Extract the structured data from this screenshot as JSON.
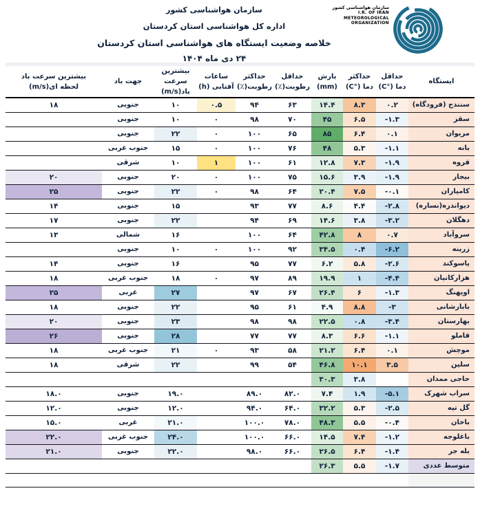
{
  "header": {
    "org_line": "سازمان هواشناسی کشور",
    "office_line": "اداره کل هواشناسی استان کردستان",
    "title": "خلاصه وضعیت ایستگاه های هواشناسی استان کردستان",
    "date": "۲۴ دی ماه ۱۴۰۴"
  },
  "logo": {
    "fa": "سازمان هواشناسی کشور",
    "en_lines": [
      "I.R. OF IRAN",
      "METEOROLOGICAL",
      "ORGANIZATION"
    ],
    "color": "#1D6B8C"
  },
  "colors": {
    "station_bg": "#FCE4D6",
    "average_row_bg": "#DED9E8",
    "empty_row_bg": "#F3F5F3",
    "strip_bg": "#EFEFF5",
    "logo_teal": "#1D6B8C"
  },
  "table": {
    "columns": [
      {
        "id": "station",
        "label": "ایستگاه"
      },
      {
        "id": "tmin",
        "label": "حداقل\nدما (°C)"
      },
      {
        "id": "tmax",
        "label": "حداکثر\nدما (°C)"
      },
      {
        "id": "precip",
        "label": "بارش\n(mm)"
      },
      {
        "id": "hum_min",
        "label": "حداقل\nرطوبت(٪)"
      },
      {
        "id": "hum_max",
        "label": "حداکثر\nرطوبت(٪)"
      },
      {
        "id": "sunshine",
        "label": "ساعات\nآفتابی (h)"
      },
      {
        "id": "wind_max",
        "label": "بیشترین سرعت\nباد(m/s)"
      },
      {
        "id": "wind_dir",
        "label": "جهت باد"
      },
      {
        "id": "gust",
        "label": "بیشترین سرعت باد\nلحظه ای(m/s)"
      }
    ],
    "rows": [
      {
        "name": "سنندج (فرودگاه)",
        "cells": [
          {
            "v": "۰.۲",
            "bg": "#FCEFE5"
          },
          {
            "v": "۸.۳",
            "bg": "#F7C59C"
          },
          {
            "v": "۱۴.۴",
            "bg": "#DEEEDF"
          },
          {
            "v": "۶۳"
          },
          {
            "v": "۹۴"
          },
          {
            "v": "۰.۵",
            "bg": "#FCF2CF"
          },
          {
            "v": "۱۰"
          },
          {
            "v": "جنوبی"
          },
          {
            "v": "۱۸"
          }
        ]
      },
      {
        "name": "سقز",
        "cells": [
          {
            "v": "-۱.۳",
            "bg": "#EDF4F9"
          },
          {
            "v": "۶.۵",
            "bg": "#FBE3CE"
          },
          {
            "v": "۴۵",
            "bg": "#98CA9E"
          },
          {
            "v": "۷۰"
          },
          {
            "v": "۹۸"
          },
          {
            "v": "۰"
          },
          {
            "v": "۱۰"
          },
          {
            "v": "جنوبی"
          },
          {
            "v": ""
          }
        ]
      },
      {
        "name": "مریوان",
        "cells": [
          {
            "v": "۰.۱",
            "bg": "#FDF2EA"
          },
          {
            "v": "۶.۴",
            "bg": "#FBE4D0"
          },
          {
            "v": "۸۵",
            "bg": "#5FAD68"
          },
          {
            "v": "۶۵"
          },
          {
            "v": "۱۰۰"
          },
          {
            "v": "۰"
          },
          {
            "v": "۲۲",
            "bg": "#E7F1F6"
          },
          {
            "v": "جنوبی"
          },
          {
            "v": ""
          }
        ]
      },
      {
        "name": "بانه",
        "cells": [
          {
            "v": "-۱.۱",
            "bg": "#EFF5FA"
          },
          {
            "v": "۵.۳",
            "bg": "#FDF4ED"
          },
          {
            "v": "۴۸",
            "bg": "#91C797"
          },
          {
            "v": "۷۶"
          },
          {
            "v": "۱۰۰"
          },
          {
            "v": "۰"
          },
          {
            "v": "۱۵"
          },
          {
            "v": "جنوب غربی"
          },
          {
            "v": ""
          }
        ]
      },
      {
        "name": "قروه",
        "cells": [
          {
            "v": "-۱.۹",
            "bg": "#E5F0F7"
          },
          {
            "v": "۷.۳",
            "bg": "#F9D4B4"
          },
          {
            "v": "۱۲.۸",
            "bg": "#E2F0E3"
          },
          {
            "v": "۶۱"
          },
          {
            "v": "۱۰۰"
          },
          {
            "v": "۱",
            "bg": "#FFE382"
          },
          {
            "v": "۱۰"
          },
          {
            "v": "شرقی"
          },
          {
            "v": ""
          }
        ]
      },
      {
        "name": "بیجار",
        "cells": [
          {
            "v": "-۱.۹",
            "bg": "#E5F0F7"
          },
          {
            "v": "۳.۹",
            "bg": "#EBF3F8"
          },
          {
            "v": "۱۵.۶",
            "bg": "#DBEDDD"
          },
          {
            "v": "۷۵"
          },
          {
            "v": "۱۰۰"
          },
          {
            "v": "۰"
          },
          {
            "v": "۲۰"
          },
          {
            "v": "جنوبی"
          },
          {
            "v": "۲۰",
            "bg": "#EAE7F2"
          }
        ]
      },
      {
        "name": "کامیاران",
        "cells": [
          {
            "v": "-۰.۱",
            "bg": "#FDF9F5"
          },
          {
            "v": "۷.۵",
            "bg": "#F9D1AF"
          },
          {
            "v": "۲۰.۴",
            "bg": "#D0E7D3"
          },
          {
            "v": "۶۴"
          },
          {
            "v": "۹۸"
          },
          {
            "v": "۰"
          },
          {
            "v": "۲۲",
            "bg": "#E7F1F6"
          },
          {
            "v": "جنوبی"
          },
          {
            "v": "۲۵",
            "bg": "#C3B8DB"
          }
        ]
      },
      {
        "name": "دیواندره(نساره)",
        "cells": [
          {
            "v": "-۲.۸",
            "bg": "#D5E7F1"
          },
          {
            "v": "۴.۴",
            "bg": "#FEFCFA"
          },
          {
            "v": "۸.۶",
            "bg": "#EBF5EC"
          },
          {
            "v": "۷۷"
          },
          {
            "v": "۹۳"
          },
          {
            "v": ""
          },
          {
            "v": "۱۵"
          },
          {
            "v": "جنوبی"
          },
          {
            "v": "۱۴"
          }
        ]
      },
      {
        "name": "دهگلان",
        "cells": [
          {
            "v": "-۳.۲",
            "bg": "#CEE3EF"
          },
          {
            "v": "۳.۸",
            "bg": "#EAF2F8"
          },
          {
            "v": "۱۴.۶",
            "bg": "#DEEEDF"
          },
          {
            "v": "۶۹"
          },
          {
            "v": "۹۴"
          },
          {
            "v": ""
          },
          {
            "v": "۲۲",
            "bg": "#E7F1F6"
          },
          {
            "v": "جنوبی"
          },
          {
            "v": "۱۷"
          }
        ]
      },
      {
        "name": "سروآباد",
        "cells": [
          {
            "v": "۰.۷",
            "bg": "#FBE9DA"
          },
          {
            "v": "۸",
            "bg": "#F8C9A3"
          },
          {
            "v": "۴۲.۸",
            "bg": "#9DCDA3"
          },
          {
            "v": "۶۴"
          },
          {
            "v": "۱۰۰"
          },
          {
            "v": ""
          },
          {
            "v": "۱۶"
          },
          {
            "v": "شمالی"
          },
          {
            "v": "۱۳"
          }
        ]
      },
      {
        "name": "زرینه",
        "cells": [
          {
            "v": "-۶.۲",
            "bg": "#90BFDA"
          },
          {
            "v": "۰.۴",
            "bg": "#C6DEED"
          },
          {
            "v": "۳۴.۵",
            "bg": "#B0D7B5"
          },
          {
            "v": "۹۲"
          },
          {
            "v": "۱۰۰"
          },
          {
            "v": "۰"
          },
          {
            "v": "۱۰"
          },
          {
            "v": "جنوبی"
          },
          {
            "v": ""
          }
        ]
      },
      {
        "name": "یاسوکند",
        "cells": [
          {
            "v": "-۲.۶",
            "bg": "#D8E9F2"
          },
          {
            "v": "۵.۸",
            "bg": "#FCEBDC"
          },
          {
            "v": "۶.۲",
            "bg": "#F1F8F1"
          },
          {
            "v": "۷۷"
          },
          {
            "v": "۹۵"
          },
          {
            "v": ""
          },
          {
            "v": "۱۶"
          },
          {
            "v": "جنوبی"
          },
          {
            "v": "۱۴"
          }
        ]
      },
      {
        "name": "هزارکانیان",
        "cells": [
          {
            "v": "-۴.۴",
            "bg": "#B7D6E8"
          },
          {
            "v": "۱",
            "bg": "#CCE2EF"
          },
          {
            "v": "۱۹.۹",
            "bg": "#D1E8D4"
          },
          {
            "v": "۸۹"
          },
          {
            "v": "۹۷"
          },
          {
            "v": "۰"
          },
          {
            "v": "۱۸"
          },
          {
            "v": "جنوب غربی"
          },
          {
            "v": "۱۸"
          }
        ]
      },
      {
        "name": "اویهنگ",
        "cells": [
          {
            "v": "-۱.۳",
            "bg": "#EDF4F9"
          },
          {
            "v": "۶",
            "bg": "#FBE7D5"
          },
          {
            "v": "۲۶.۴",
            "bg": "#C3E0C6"
          },
          {
            "v": "۶۷"
          },
          {
            "v": "۹۷"
          },
          {
            "v": ""
          },
          {
            "v": "۲۷",
            "bg": "#9ECBDE"
          },
          {
            "v": "غربی"
          },
          {
            "v": "۲۵",
            "bg": "#C3B8DB"
          }
        ]
      },
      {
        "name": "بابارشانی",
        "cells": [
          {
            "v": "-۳",
            "bg": "#D1E5F0"
          },
          {
            "v": "۸.۸",
            "bg": "#F6BE92"
          },
          {
            "v": "۴.۹",
            "bg": "#F4FAF5"
          },
          {
            "v": "۶۱"
          },
          {
            "v": "۹۵"
          },
          {
            "v": ""
          },
          {
            "v": "۲۲",
            "bg": "#E7F1F6"
          },
          {
            "v": "جنوبی"
          },
          {
            "v": "۱۸"
          }
        ]
      },
      {
        "name": "بهارستان",
        "cells": [
          {
            "v": "-۳.۴",
            "bg": "#CBE1EE"
          },
          {
            "v": "۰.۸",
            "bg": "#C9E0EE"
          },
          {
            "v": "۲۲.۵",
            "bg": "#C8E4CB"
          },
          {
            "v": "۹۸"
          },
          {
            "v": "۹۸"
          },
          {
            "v": ""
          },
          {
            "v": "۲۳",
            "bg": "#DEEBF2"
          },
          {
            "v": "جنوبی"
          },
          {
            "v": "۲۰",
            "bg": "#EAE7F2"
          }
        ]
      },
      {
        "name": "قاملو",
        "cells": [
          {
            "v": "-۱.۱",
            "bg": "#EFF5FA"
          },
          {
            "v": "۶.۶",
            "bg": "#FBE2CC"
          },
          {
            "v": "۸.۳",
            "bg": "#EBF5EC"
          },
          {
            "v": "۷۷"
          },
          {
            "v": "۷۷"
          },
          {
            "v": ""
          },
          {
            "v": "۲۸",
            "bg": "#93C5DA"
          },
          {
            "v": "جنوبی"
          },
          {
            "v": "۲۶",
            "bg": "#BCAFD6"
          }
        ]
      },
      {
        "name": "موچش",
        "cells": [
          {
            "v": "۰.۱",
            "bg": "#FDF2EA"
          },
          {
            "v": "۶.۴",
            "bg": "#FBE4D0"
          },
          {
            "v": "۲۱.۲",
            "bg": "#CBE5CE"
          },
          {
            "v": "۵۸"
          },
          {
            "v": "۹۳"
          },
          {
            "v": "۰"
          },
          {
            "v": "۲۱",
            "bg": "#F3F8FA"
          },
          {
            "v": "جنوب غربی"
          },
          {
            "v": "۱۸"
          }
        ]
      },
      {
        "name": "سلین",
        "cells": [
          {
            "v": "۳.۵",
            "bg": "#F7C9A4"
          },
          {
            "v": "۱۰.۱",
            "bg": "#F3A96F"
          },
          {
            "v": "۴۶.۸",
            "bg": "#94C89A"
          },
          {
            "v": "۵۴"
          },
          {
            "v": "۹۹"
          },
          {
            "v": ""
          },
          {
            "v": "۲۲",
            "bg": "#E7F1F6"
          },
          {
            "v": "شرقی"
          },
          {
            "v": "۱۸"
          }
        ]
      },
      {
        "name": "حاجی ممدان",
        "cells": [
          {
            "v": ""
          },
          {
            "v": "۳.۸",
            "bg": "#E5EFF6"
          },
          {
            "v": "۳۰.۳",
            "bg": "#BADCBE"
          },
          {
            "v": ""
          },
          {
            "v": ""
          },
          {
            "v": ""
          },
          {
            "v": ""
          },
          {
            "v": ""
          },
          {
            "v": ""
          }
        ]
      },
      {
        "name": "سراب شهرک",
        "cells": [
          {
            "v": "-۵.۱",
            "bg": "#A5CCE0"
          },
          {
            "v": "۱.۹",
            "bg": "#D2E5F1"
          },
          {
            "v": "۷.۴",
            "bg": "#EEF6EF"
          },
          {
            "v": "۸۲.۰"
          },
          {
            "v": "۸۹.۰"
          },
          {
            "v": ""
          },
          {
            "v": "۱۹.۰"
          },
          {
            "v": "جنوبی"
          },
          {
            "v": "۱۸.۰"
          }
        ]
      },
      {
        "name": "گل تپه",
        "cells": [
          {
            "v": "-۲.۵",
            "bg": "#D9EAF2"
          },
          {
            "v": "۵.۳",
            "bg": "#FDF4ED"
          },
          {
            "v": "۳۲.۲",
            "bg": "#B6D9BA"
          },
          {
            "v": "۶۴.۰"
          },
          {
            "v": "۹۴.۰"
          },
          {
            "v": ""
          },
          {
            "v": "۱۲.۰"
          },
          {
            "v": "جنوبی"
          },
          {
            "v": "۱۲.۰"
          }
        ]
      },
      {
        "name": "باخان",
        "cells": [
          {
            "v": "-۰.۴",
            "bg": "#FCF9F7"
          },
          {
            "v": "۵.۵",
            "bg": "#FDF0E6"
          },
          {
            "v": "۴۸.۳",
            "bg": "#90C696"
          },
          {
            "v": "۷۸.۰"
          },
          {
            "v": "۱۰۰.۰"
          },
          {
            "v": ""
          },
          {
            "v": "۲۱.۰",
            "bg": "#F3F8FA"
          },
          {
            "v": "غربی"
          },
          {
            "v": "۱۵.۰"
          }
        ]
      },
      {
        "name": "باغلوجه",
        "cells": [
          {
            "v": "-۱.۲",
            "bg": "#EEF5F9"
          },
          {
            "v": "۷.۴",
            "bg": "#F9D2B1"
          },
          {
            "v": "۱۴.۵",
            "bg": "#DEEEDF"
          },
          {
            "v": "۶۶.۰"
          },
          {
            "v": "۱۰۰.۰"
          },
          {
            "v": ""
          },
          {
            "v": "۲۴.۰",
            "bg": "#B8D7E7"
          },
          {
            "v": "جنوب غربی"
          },
          {
            "v": "۲۲.۰",
            "bg": "#D6CDE5"
          }
        ]
      },
      {
        "name": "بله جر",
        "cells": [
          {
            "v": "-۱.۴",
            "bg": "#ECF3F8"
          },
          {
            "v": "۶.۴",
            "bg": "#FBE4D0"
          },
          {
            "v": "۲۶.۵",
            "bg": "#C2E0C5"
          },
          {
            "v": "۶۶.۰"
          },
          {
            "v": "۹۸.۰"
          },
          {
            "v": ""
          },
          {
            "v": "۲۲.۰",
            "bg": "#E7F1F6"
          },
          {
            "v": "جنوبی"
          },
          {
            "v": "۲۱.۰",
            "bg": "#DFD8EA"
          }
        ]
      },
      {
        "name": "متوسط عددی",
        "name_bg": "#DED9E8",
        "cells": [
          {
            "v": "-۱.۷",
            "bg": "#E8F1F7"
          },
          {
            "v": "۵.۵",
            "bg": "#FDF0E6"
          },
          {
            "v": "۲۶.۳",
            "bg": "#C3E0C6"
          },
          {
            "v": ""
          },
          {
            "v": ""
          },
          {
            "v": ""
          },
          {
            "v": ""
          },
          {
            "v": ""
          },
          {
            "v": ""
          }
        ]
      },
      {
        "name": "",
        "name_bg": "#F3F5F3",
        "empty": true,
        "cells": [
          {
            "v": ""
          },
          {
            "v": ""
          },
          {
            "v": ""
          },
          {
            "v": ""
          },
          {
            "v": ""
          },
          {
            "v": ""
          },
          {
            "v": ""
          },
          {
            "v": ""
          },
          {
            "v": ""
          }
        ]
      }
    ]
  }
}
